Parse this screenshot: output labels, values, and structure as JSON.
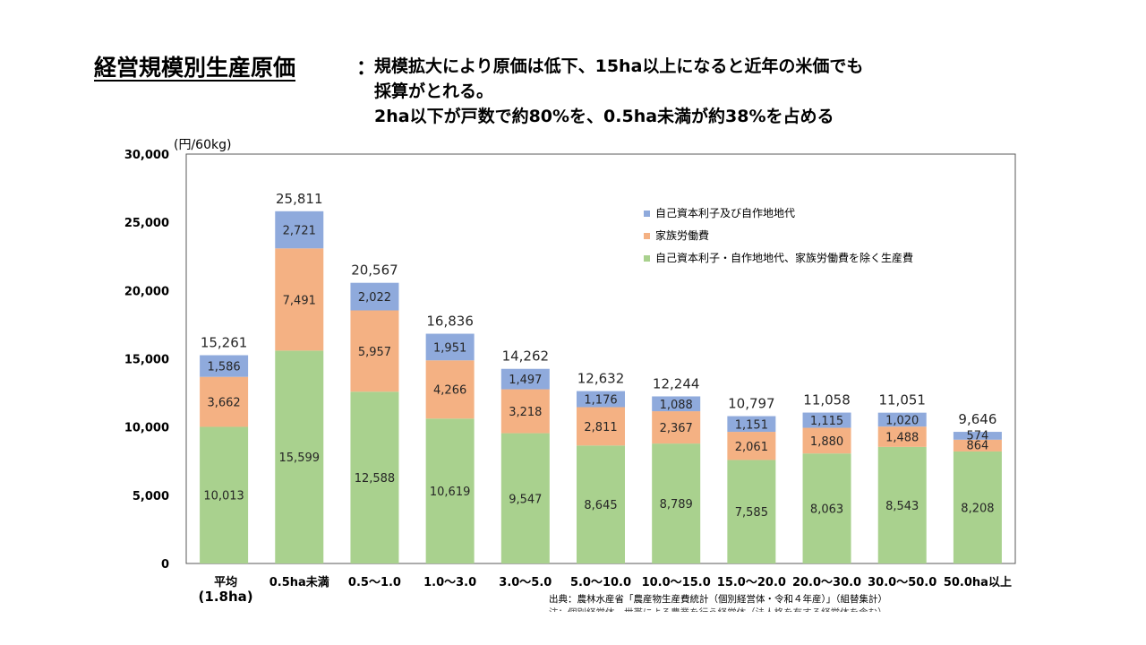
{
  "header": {
    "title": "経営規模別生産原価",
    "colon": "：",
    "lines": [
      "規模拡大により原価は低下、15ha以上になると近年の米価でも",
      "採算がとれる。",
      "2ha以下が戸数で約80%を、0.5ha未満が約38%を占める"
    ]
  },
  "chart_data": {
    "type": "bar",
    "stacked": true,
    "unit_label": "(円/60kg)",
    "ylim": [
      0,
      30000
    ],
    "yticks": [
      0,
      5000,
      10000,
      15000,
      20000,
      25000,
      30000
    ],
    "ytick_labels": [
      "0",
      "5,000",
      "10,000",
      "15,000",
      "20,000",
      "25,000",
      "30,000"
    ],
    "categories": [
      [
        "平均",
        "(1.8ha)"
      ],
      [
        "0.5ha未満"
      ],
      [
        "0.5～1.0"
      ],
      [
        "1.0～3.0"
      ],
      [
        "3.0～5.0"
      ],
      [
        "5.0～10.0"
      ],
      [
        "10.0～15.0"
      ],
      [
        "15.0～20.0"
      ],
      [
        "20.0～30.0"
      ],
      [
        "30.0～50.0"
      ],
      [
        "50.0ha以上"
      ]
    ],
    "series": [
      {
        "name": "自己資本利子・自作地地代、家族労働費を除く生産費",
        "color": "#a9d18e",
        "values": [
          10013,
          15599,
          12588,
          10619,
          9547,
          8645,
          8789,
          7585,
          8063,
          8543,
          8208
        ],
        "labels": [
          "10,013",
          "15,599",
          "12,588",
          "10,619",
          "9,547",
          "8,645",
          "8,789",
          "7,585",
          "8,063",
          "8,543",
          "8,208"
        ]
      },
      {
        "name": "家族労働費",
        "color": "#f4b183",
        "values": [
          3662,
          7491,
          5957,
          4266,
          3218,
          2811,
          2367,
          2061,
          1880,
          1488,
          864
        ],
        "labels": [
          "3,662",
          "7,491",
          "5,957",
          "4,266",
          "3,218",
          "2,811",
          "2,367",
          "2,061",
          "1,880",
          "1,488",
          "864"
        ]
      },
      {
        "name": "自己資本利子及び自作地地代",
        "color": "#8faadc",
        "values": [
          1586,
          2721,
          2022,
          1951,
          1497,
          1176,
          1088,
          1151,
          1115,
          1020,
          574
        ],
        "labels": [
          "1,586",
          "2,721",
          "2,022",
          "1,951",
          "1,497",
          "1,176",
          "1,088",
          "1,151",
          "1,115",
          "1,020",
          "574"
        ]
      }
    ],
    "totals": [
      15261,
      25811,
      20567,
      16836,
      14262,
      12632,
      12244,
      10797,
      11058,
      11051,
      9646
    ],
    "total_labels": [
      "15,261",
      "25,811",
      "20,567",
      "16,836",
      "14,262",
      "12,632",
      "12,244",
      "10,797",
      "11,058",
      "11,051",
      "9,646"
    ],
    "legend": {
      "position": "top-right",
      "order": [
        2,
        1,
        0
      ]
    }
  },
  "source": {
    "text": "出典：農林水産省「農産物生産費統計（個別経営体・令和４年産）」（組替集計）",
    "note": "注：個別経営体…世帯による農業を行う経営体（法人格を有する経営体を含む）"
  }
}
